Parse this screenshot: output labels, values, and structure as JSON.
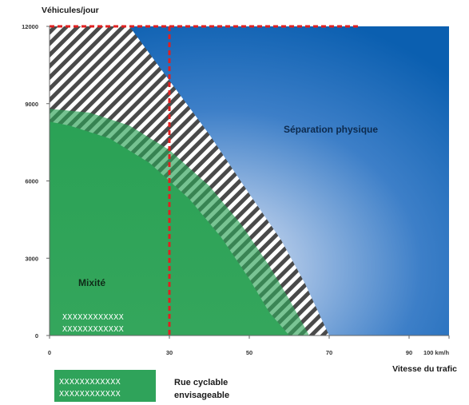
{
  "chart_data": {
    "type": "area",
    "ylabel": "Véhicules/jour",
    "xlabel": "Vitesse du trafic",
    "xlim": [
      0,
      100
    ],
    "ylim": [
      0,
      12000
    ],
    "x_ticks": [
      {
        "value": 0,
        "label": "0"
      },
      {
        "value": 30,
        "label": "30"
      },
      {
        "value": 50,
        "label": "50"
      },
      {
        "value": 70,
        "label": "70"
      },
      {
        "value": 90,
        "label": "90"
      },
      {
        "value": 100,
        "label": "100 km/h"
      }
    ],
    "y_ticks": [
      {
        "value": 0,
        "label": "0"
      },
      {
        "value": 3000,
        "label": "3000"
      },
      {
        "value": 6000,
        "label": "6000"
      },
      {
        "value": 9000,
        "label": "9000"
      },
      {
        "value": 12000,
        "label": "12000"
      }
    ],
    "regions": [
      {
        "name": "Mixité",
        "color": "#2fa35a",
        "boundary": [
          [
            0,
            8800
          ],
          [
            10,
            8650
          ],
          [
            20,
            8150
          ],
          [
            30,
            7200
          ],
          [
            40,
            5800
          ],
          [
            48,
            4300
          ],
          [
            55,
            2700
          ],
          [
            60,
            1400
          ],
          [
            65,
            0
          ]
        ]
      },
      {
        "name": "Zone de transition (hachurée)",
        "color": "#555555",
        "boundary": [
          [
            0,
            12000
          ],
          [
            20,
            12000
          ],
          [
            30,
            9900
          ],
          [
            40,
            7800
          ],
          [
            50,
            5500
          ],
          [
            58,
            3700
          ],
          [
            64,
            2000
          ],
          [
            70,
            0
          ]
        ]
      },
      {
        "name": "Séparation physique",
        "color": "#1a6bbf"
      }
    ],
    "threshold_lines": [
      {
        "axis": "x",
        "value": 30,
        "color": "#e02020",
        "style": "dashed"
      },
      {
        "axis": "y",
        "value": 12000,
        "color": "#e02020",
        "style": "dashed",
        "x_range": [
          0,
          78
        ]
      }
    ],
    "marked_area": {
      "name": "Rue cyclable envisageable",
      "pattern": "XXXXXXXXXXXX",
      "x_range": [
        0,
        30
      ],
      "y_range": [
        0,
        1200
      ]
    }
  },
  "labels": {
    "separation": "Séparation physique",
    "mixite": "Mixité",
    "xx_line": "XXXXXXXXXXXX"
  },
  "legend": {
    "line1": "Rue cyclable",
    "line2": "envisageable",
    "pattern": "XXXXXXXXXXXX",
    "color": "#2fa35a"
  }
}
